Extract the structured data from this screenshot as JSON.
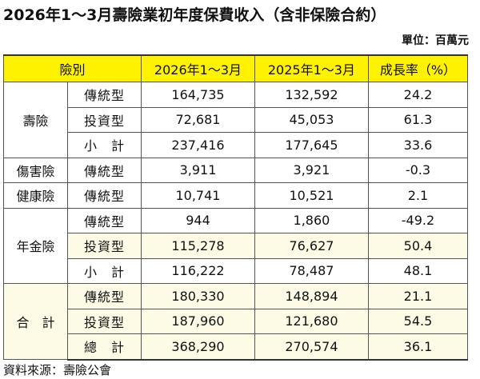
{
  "title": "2026年1～3月壽險業初年度保費收入（含非保險合約）",
  "unit": "單位：百萬元",
  "headers": [
    "險別",
    "2026年1～3月",
    "2025年1～3月",
    "成長率（%）"
  ],
  "groups": [
    {
      "name": "壽險",
      "rows": [
        {
          "type": "傳統型",
          "y2026": "164,735",
          "y2025": "132,592",
          "growth": "24.2"
        },
        {
          "type": "投資型",
          "y2026": "72,681",
          "y2025": "45,053",
          "growth": "61.3"
        },
        {
          "type": "小　計",
          "y2026": "237,416",
          "y2025": "177,645",
          "growth": "33.6"
        }
      ]
    },
    {
      "name": "傷害險",
      "rows": [
        {
          "type": "傳統型",
          "y2026": "3,911",
          "y2025": "3,921",
          "growth": "-0.3"
        }
      ]
    },
    {
      "name": "健康險",
      "rows": [
        {
          "type": "傳統型",
          "y2026": "10,741",
          "y2025": "10,521",
          "growth": "2.1"
        }
      ]
    },
    {
      "name": "年金險",
      "rows": [
        {
          "type": "傳統型",
          "y2026": "944",
          "y2025": "1,860",
          "growth": "-49.2"
        },
        {
          "type": "投資型",
          "y2026": "115,278",
          "y2025": "76,627",
          "growth": "50.4"
        },
        {
          "type": "小　計",
          "y2026": "116,222",
          "y2025": "78,487",
          "growth": "48.1"
        }
      ]
    },
    {
      "name": "合　計",
      "rows": [
        {
          "type": "傳統型",
          "y2026": "180,330",
          "y2025": "148,894",
          "growth": "21.1"
        },
        {
          "type": "投資型",
          "y2026": "187,960",
          "y2025": "121,680",
          "growth": "54.5"
        },
        {
          "type": "總　計",
          "y2026": "368,290",
          "y2025": "270,574",
          "growth": "36.1"
        }
      ]
    }
  ],
  "source": "資料來源：壽險公會",
  "colors": {
    "header": "#fff200",
    "cream": "#fdfbe6"
  }
}
